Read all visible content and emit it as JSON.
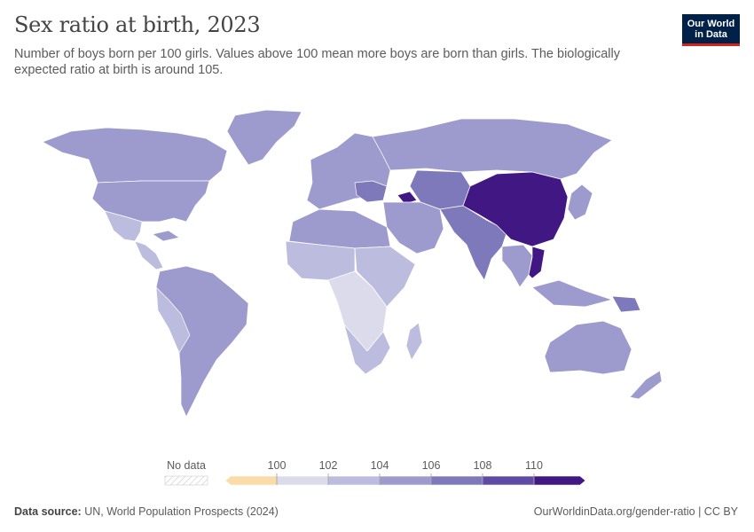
{
  "header": {
    "title": "Sex ratio at birth, 2023",
    "subtitle": "Number of boys born per 100 girls. Values above 100 mean more boys are born than girls. The biologically expected ratio at birth is around 105."
  },
  "logo": {
    "line1": "Our World",
    "line2": "in Data"
  },
  "legend": {
    "no_data_label": "No data",
    "ticks": [
      "100",
      "102",
      "104",
      "106",
      "108",
      "110"
    ],
    "bin_colors": [
      "#fbdca7",
      "#dcdbec",
      "#bcbcde",
      "#9d9bcd",
      "#7e79bb",
      "#5f4aa6",
      "#411883"
    ]
  },
  "footer": {
    "source_label": "Data source:",
    "source_text": "UN, World Population Prospects (2024)",
    "link_text": "OurWorldinData.org/gender-ratio | CC BY"
  },
  "map_colors": {
    "north_america": "#9d9bcd",
    "mexico_central_america": "#bcbcde",
    "caribbean": "#9d9bcd",
    "south_america": "#9d9bcd",
    "south_america_light": "#bcbcde",
    "europe": "#9d9bcd",
    "europe_southeast": "#7e79bb",
    "russia": "#9d9bcd",
    "caucasus": "#411883",
    "central_asia": "#7e79bb",
    "middle_east": "#9d9bcd",
    "india": "#7e79bb",
    "china": "#411883",
    "vietnam": "#411883",
    "southeast_asia": "#9d9bcd",
    "north_africa": "#9d9bcd",
    "west_africa": "#bcbcde",
    "central_africa": "#dcdbec",
    "east_africa": "#bcbcde",
    "southern_africa": "#bcbcde",
    "madagascar": "#bcbcde",
    "japan_korea": "#9d9bcd",
    "australia": "#9d9bcd",
    "new_zealand": "#9d9bcd",
    "papua": "#7e79bb",
    "greenland": "#9d9bcd"
  }
}
